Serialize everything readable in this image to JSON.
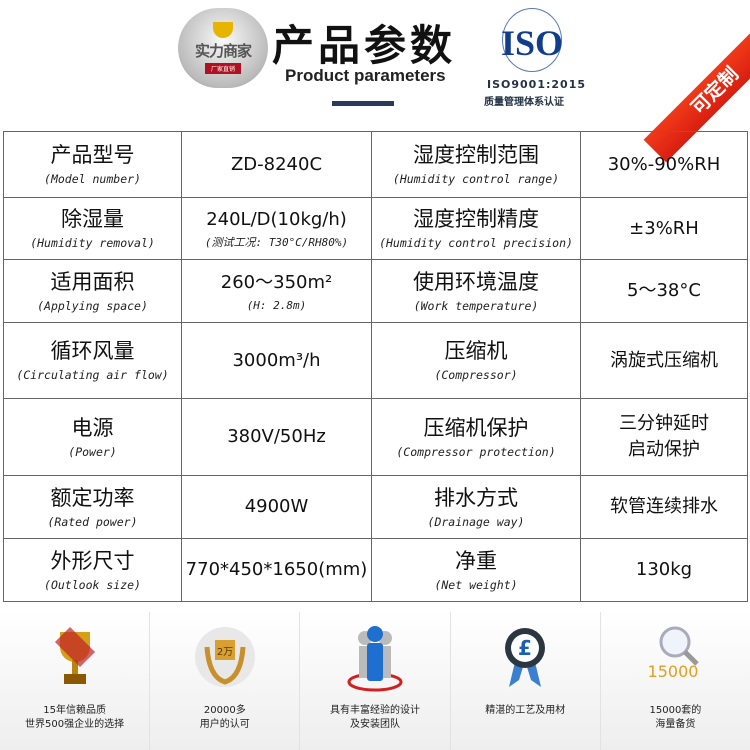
{
  "header": {
    "logo_text": "实力商家",
    "logo_sub": "厂家直销",
    "title": "产品参数",
    "subtitle": "Product parameters",
    "iso_logo": "ISO",
    "iso_code": "ISO9001:2015",
    "iso_cert": "质量管理体系认证",
    "ribbon": "可定制",
    "ribbon_color": "#e32a14"
  },
  "table": {
    "rows": [
      [
        {
          "main": "产品型号",
          "sub": "(Model number)"
        },
        {
          "main": "ZD-8240C",
          "sub": ""
        },
        {
          "main": "湿度控制范围",
          "sub": "(Humidity control range)"
        },
        {
          "main": "30%-90%RH",
          "sub": ""
        }
      ],
      [
        {
          "main": "除湿量",
          "sub": "(Humidity removal)"
        },
        {
          "main": "240L/D(10kg/h)",
          "sub": "(测试工况: T30°C/RH80%)"
        },
        {
          "main": "湿度控制精度",
          "sub": "(Humidity control precision)"
        },
        {
          "main": "±3%RH",
          "sub": ""
        }
      ],
      [
        {
          "main": "适用面积",
          "sub": "(Applying space)"
        },
        {
          "main": "260～350m²",
          "sub": "(H: 2.8m)"
        },
        {
          "main": "使用环境温度",
          "sub": "(Work temperature)"
        },
        {
          "main": "5～38°C",
          "sub": ""
        }
      ],
      [
        {
          "main": "循环风量",
          "sub": "(Circulating air flow)"
        },
        {
          "main": "3000m³/h",
          "sub": ""
        },
        {
          "main": "压缩机",
          "sub": "(Compressor)"
        },
        {
          "main": "涡旋式压缩机",
          "sub": ""
        }
      ],
      [
        {
          "main": "电源",
          "sub": "(Power)"
        },
        {
          "main": "380V/50Hz",
          "sub": ""
        },
        {
          "main": "压缩机保护",
          "sub": "(Compressor protection)"
        },
        {
          "main": "三分钟延时",
          "main2": "启动保护",
          "sub": ""
        }
      ],
      [
        {
          "main": "额定功率",
          "sub": "(Rated power)"
        },
        {
          "main": "4900W",
          "sub": ""
        },
        {
          "main": "排水方式",
          "sub": "(Drainage way)"
        },
        {
          "main": "软管连续排水",
          "sub": ""
        }
      ],
      [
        {
          "main": "外形尺寸",
          "sub": "(Outlook size)"
        },
        {
          "main": "770*450*1650(mm)",
          "sub": ""
        },
        {
          "main": "净重",
          "sub": "(Net weight)"
        },
        {
          "main": "130kg",
          "sub": ""
        }
      ]
    ]
  },
  "footer": {
    "features": [
      {
        "icon": "trophy-icon",
        "line1": "15年信赖品质",
        "line2": "世界500强企业的选择"
      },
      {
        "icon": "laurel-badge-icon",
        "badge": "2万",
        "line1": "20000多",
        "line2": "用户的认可"
      },
      {
        "icon": "team-icon",
        "line1": "具有丰富经验的设计",
        "line2": "及安装团队"
      },
      {
        "icon": "quality-medal-icon",
        "badge": "£",
        "line1": "精湛的工艺及用材",
        "line2": ""
      },
      {
        "icon": "magnifier-icon",
        "badge": "15000",
        "line1": "15000套的",
        "line2": "海量备货"
      }
    ]
  }
}
